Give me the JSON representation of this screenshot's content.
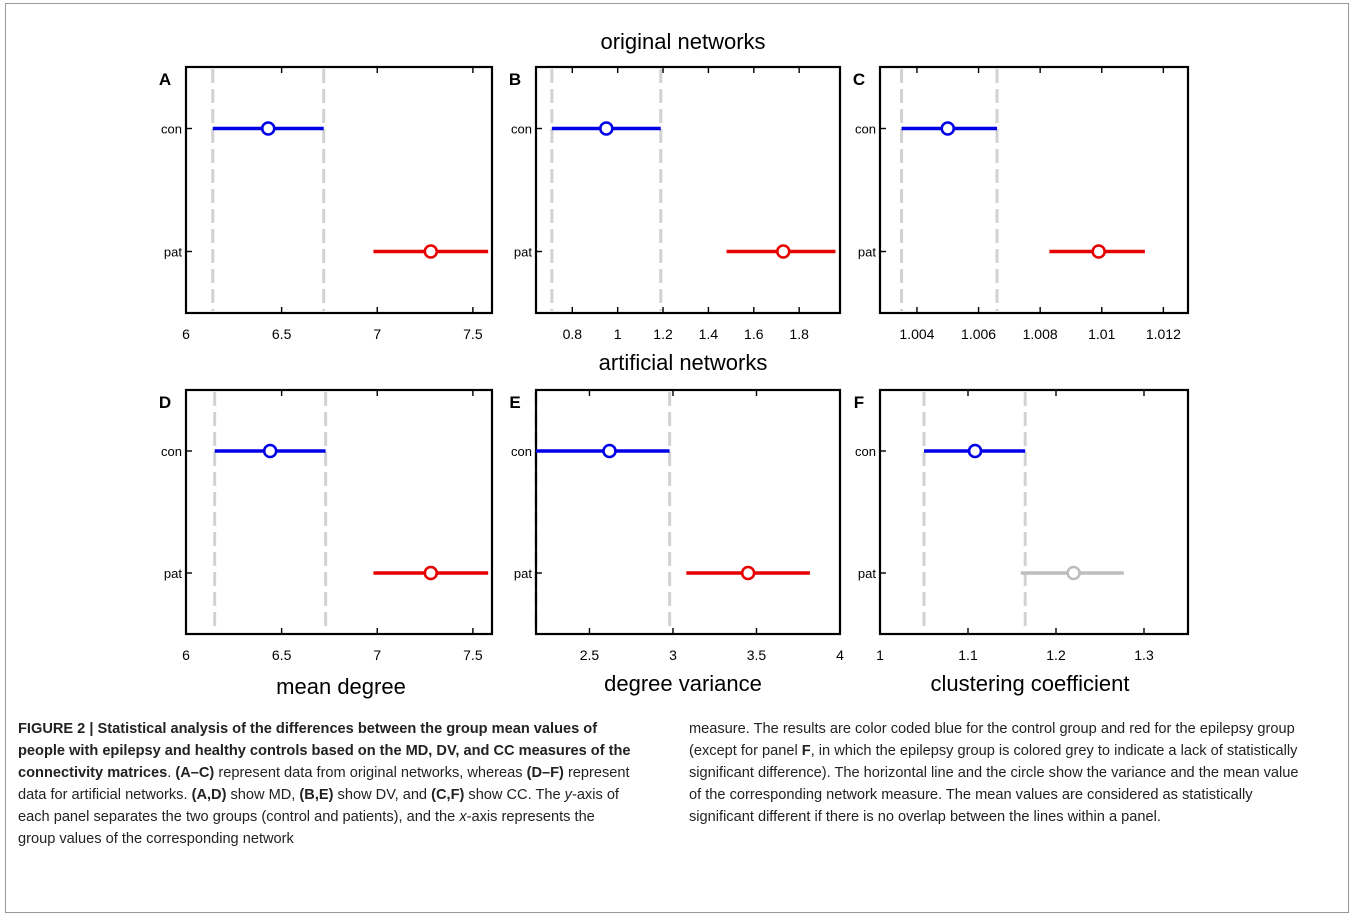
{
  "figure": {
    "row_titles": [
      "original networks",
      "artificial networks"
    ],
    "column_xlabels": [
      "mean degree",
      "degree variance",
      "clustering coefficient"
    ]
  },
  "chart_data": [
    {
      "type": "errorbar",
      "panel": "A",
      "ylabels": [
        "con",
        "pat"
      ],
      "xlim": [
        6,
        7.6
      ],
      "xticks": [
        6,
        6.5,
        7,
        7.5
      ],
      "xtick_labels": [
        "6",
        "6.5",
        "7",
        "7.5"
      ],
      "vlines": [
        6.14,
        6.72
      ],
      "series": [
        {
          "group": "con",
          "mean": 6.43,
          "low": 6.14,
          "high": 6.72,
          "color": "#0000e6"
        },
        {
          "group": "pat",
          "mean": 7.28,
          "low": 6.98,
          "high": 7.58,
          "color": "#e60000"
        }
      ]
    },
    {
      "type": "errorbar",
      "panel": "B",
      "ylabels": [
        "con",
        "pat"
      ],
      "xlim": [
        0.64,
        1.98
      ],
      "xticks": [
        0.8,
        1,
        1.2,
        1.4,
        1.6,
        1.8
      ],
      "xtick_labels": [
        "0.8",
        "1",
        "1.2",
        "1.4",
        "1.6",
        "1.8"
      ],
      "vlines": [
        0.71,
        1.19
      ],
      "series": [
        {
          "group": "con",
          "mean": 0.95,
          "low": 0.71,
          "high": 1.19,
          "color": "#0000e6"
        },
        {
          "group": "pat",
          "mean": 1.73,
          "low": 1.48,
          "high": 1.96,
          "color": "#e60000"
        }
      ]
    },
    {
      "type": "errorbar",
      "panel": "C",
      "ylabels": [
        "con",
        "pat"
      ],
      "xlim": [
        1.0028,
        1.0128
      ],
      "xticks": [
        1.004,
        1.006,
        1.008,
        1.01,
        1.012
      ],
      "xtick_labels": [
        "1.004",
        "1.006",
        "1.008",
        "1.01",
        "1.012"
      ],
      "vlines": [
        1.0035,
        1.0066
      ],
      "series": [
        {
          "group": "con",
          "mean": 1.005,
          "low": 1.0035,
          "high": 1.0066,
          "color": "#0000e6"
        },
        {
          "group": "pat",
          "mean": 1.0099,
          "low": 1.0083,
          "high": 1.0114,
          "color": "#e60000"
        }
      ]
    },
    {
      "type": "errorbar",
      "panel": "D",
      "ylabels": [
        "con",
        "pat"
      ],
      "xlim": [
        6,
        7.6
      ],
      "xticks": [
        6,
        6.5,
        7,
        7.5
      ],
      "xtick_labels": [
        "6",
        "6.5",
        "7",
        "7.5"
      ],
      "vlines": [
        6.15,
        6.73
      ],
      "series": [
        {
          "group": "con",
          "mean": 6.44,
          "low": 6.15,
          "high": 6.73,
          "color": "#0000e6"
        },
        {
          "group": "pat",
          "mean": 7.28,
          "low": 6.98,
          "high": 7.58,
          "color": "#e60000"
        }
      ]
    },
    {
      "type": "errorbar",
      "panel": "E",
      "ylabels": [
        "con",
        "pat"
      ],
      "xlim": [
        2.18,
        4.0
      ],
      "xticks": [
        2.5,
        3,
        3.5,
        4
      ],
      "xtick_labels": [
        "2.5",
        "3",
        "3.5",
        "4"
      ],
      "vlines": [
        2.18,
        2.98
      ],
      "series": [
        {
          "group": "con",
          "mean": 2.62,
          "low": 2.18,
          "high": 2.98,
          "color": "#0000e6"
        },
        {
          "group": "pat",
          "mean": 3.45,
          "low": 3.08,
          "high": 3.82,
          "color": "#e60000"
        }
      ]
    },
    {
      "type": "errorbar",
      "panel": "F",
      "ylabels": [
        "con",
        "pat"
      ],
      "xlim": [
        1.0,
        1.35
      ],
      "xticks": [
        1,
        1.1,
        1.2,
        1.3
      ],
      "xtick_labels": [
        "1",
        "1.1",
        "1.2",
        "1.3"
      ],
      "vlines": [
        1.05,
        1.165
      ],
      "series": [
        {
          "group": "con",
          "mean": 1.108,
          "low": 1.05,
          "high": 1.165,
          "color": "#0000e6"
        },
        {
          "group": "pat",
          "mean": 1.22,
          "low": 1.16,
          "high": 1.277,
          "color": "#bdbdbd"
        }
      ]
    }
  ],
  "caption": {
    "bold_title": "FIGURE 2 | Statistical analysis of the differences between the group mean values of people with epilepsy and healthy controls based on the MD, DV, and CC measures of the connectivity matrices",
    "p1": ".",
    "r1": "(A–C)",
    "p2": " represent data from original networks, whereas ",
    "r2": "(D–F)",
    "p3": " represent data for artificial networks. ",
    "r3": "(A,D)",
    "p4": " show MD, ",
    "r4": "(B,E)",
    "p5": " show DV, and ",
    "r5": "(C,F)",
    "p6": " show CC. The ",
    "y": "y",
    "p7": "-axis of each panel separates the two groups (control and patients), and the ",
    "x": "x",
    "p8": "-axis represents the group values of the corresponding network",
    "right1": "measure. The results are color coded blue for the control group and red for the epilepsy group (except for panel ",
    "right_bold": "F",
    "right2": ", in which the epilepsy group is colored grey to indicate a lack of statistically significant difference). The horizontal line and the circle show the variance and the mean value of the corresponding network measure. The mean values are considered as statistically significant different if there is no overlap between the lines within a panel."
  }
}
